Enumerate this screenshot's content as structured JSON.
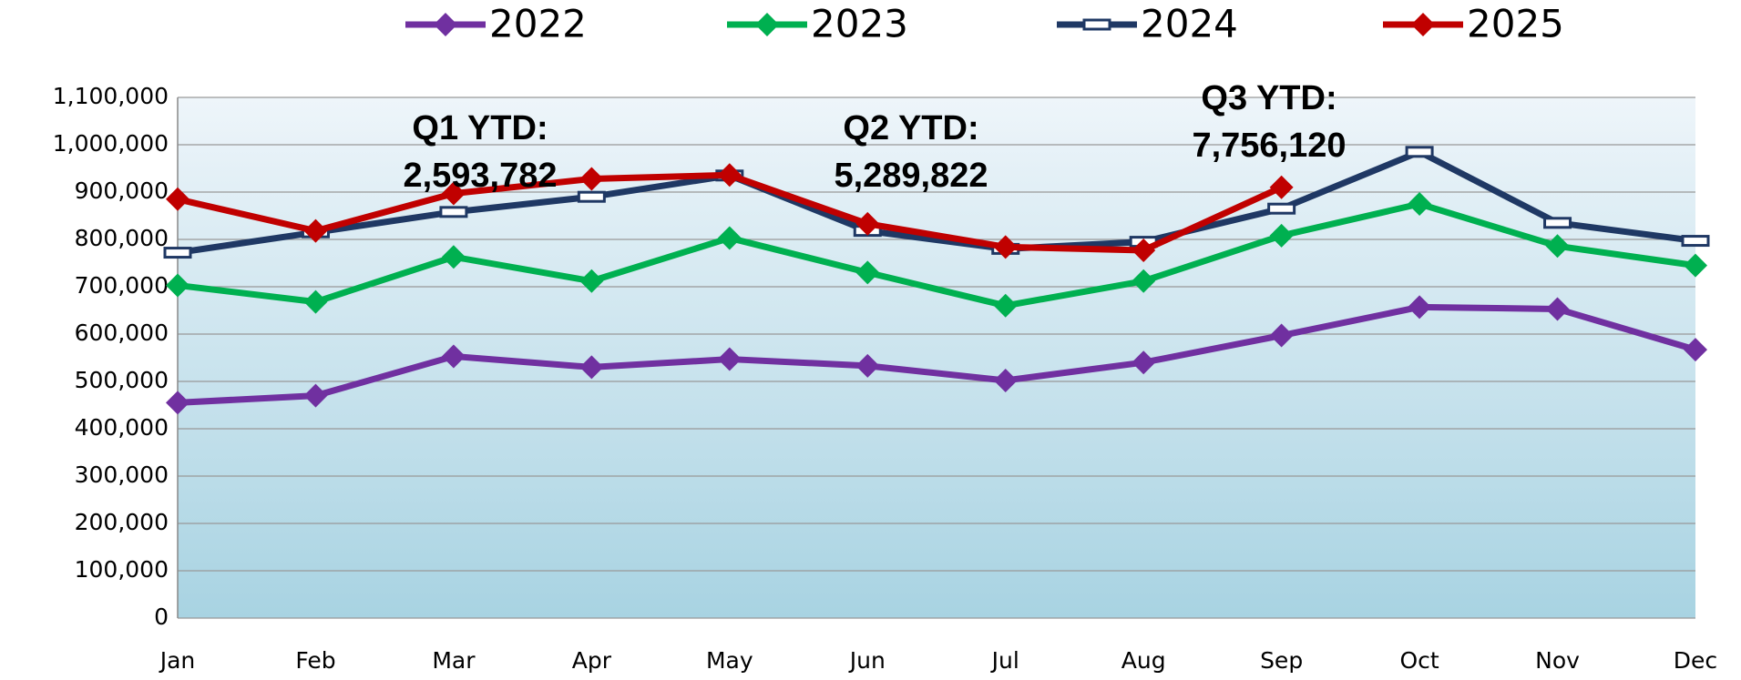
{
  "chart_data": {
    "type": "line",
    "categories": [
      "Jan",
      "Feb",
      "Mar",
      "Apr",
      "May",
      "Jun",
      "Jul",
      "Aug",
      "Sep",
      "Oct",
      "Nov",
      "Dec"
    ],
    "series": [
      {
        "name": "2022",
        "color": "#7030a0",
        "marker": "diamond",
        "values": [
          455000,
          470000,
          553000,
          530000,
          547000,
          533000,
          502000,
          540000,
          597000,
          657000,
          653000,
          567000
        ]
      },
      {
        "name": "2023",
        "color": "#00b050",
        "marker": "diamond",
        "values": [
          703000,
          668000,
          763000,
          712000,
          803000,
          730000,
          660000,
          712000,
          808000,
          875000,
          786000,
          745000
        ]
      },
      {
        "name": "2024",
        "color": "#1f3864",
        "marker": "dash",
        "values": [
          772000,
          815000,
          858000,
          890000,
          935000,
          818000,
          780000,
          795000,
          865000,
          985000,
          835000,
          797000
        ]
      },
      {
        "name": "2025",
        "color": "#c00000",
        "marker": "diamond",
        "values": [
          885000,
          818000,
          897000,
          928000,
          936000,
          833000,
          784000,
          777000,
          910000,
          null,
          null,
          null
        ]
      }
    ],
    "ylim": [
      0,
      1100000
    ],
    "yticks": [
      0,
      {
        "value": 100000,
        "label": "100,000"
      },
      {
        "value": 200000,
        "label": "200,000"
      },
      {
        "value": 300000,
        "label": "300,000"
      },
      {
        "value": 400000,
        "label": "400,000"
      },
      {
        "value": 500000,
        "label": "500,000"
      },
      {
        "value": 600000,
        "label": "600,000"
      },
      {
        "value": 700000,
        "label": "700,000"
      },
      {
        "value": 800000,
        "label": "800,000"
      },
      {
        "value": 900000,
        "label": "900,000"
      },
      {
        "value": 1000000,
        "label": "1,000,000"
      },
      {
        "value": 1100000,
        "label": "1,100,000"
      }
    ],
    "grid": true,
    "legend": "top",
    "annotations": [
      {
        "lines": [
          "Q1 YTD:",
          "2,593,782"
        ]
      },
      {
        "lines": [
          "Q2 YTD:",
          "5,289,822"
        ]
      },
      {
        "lines": [
          "Q3 YTD:",
          "7,756,120"
        ]
      }
    ]
  }
}
